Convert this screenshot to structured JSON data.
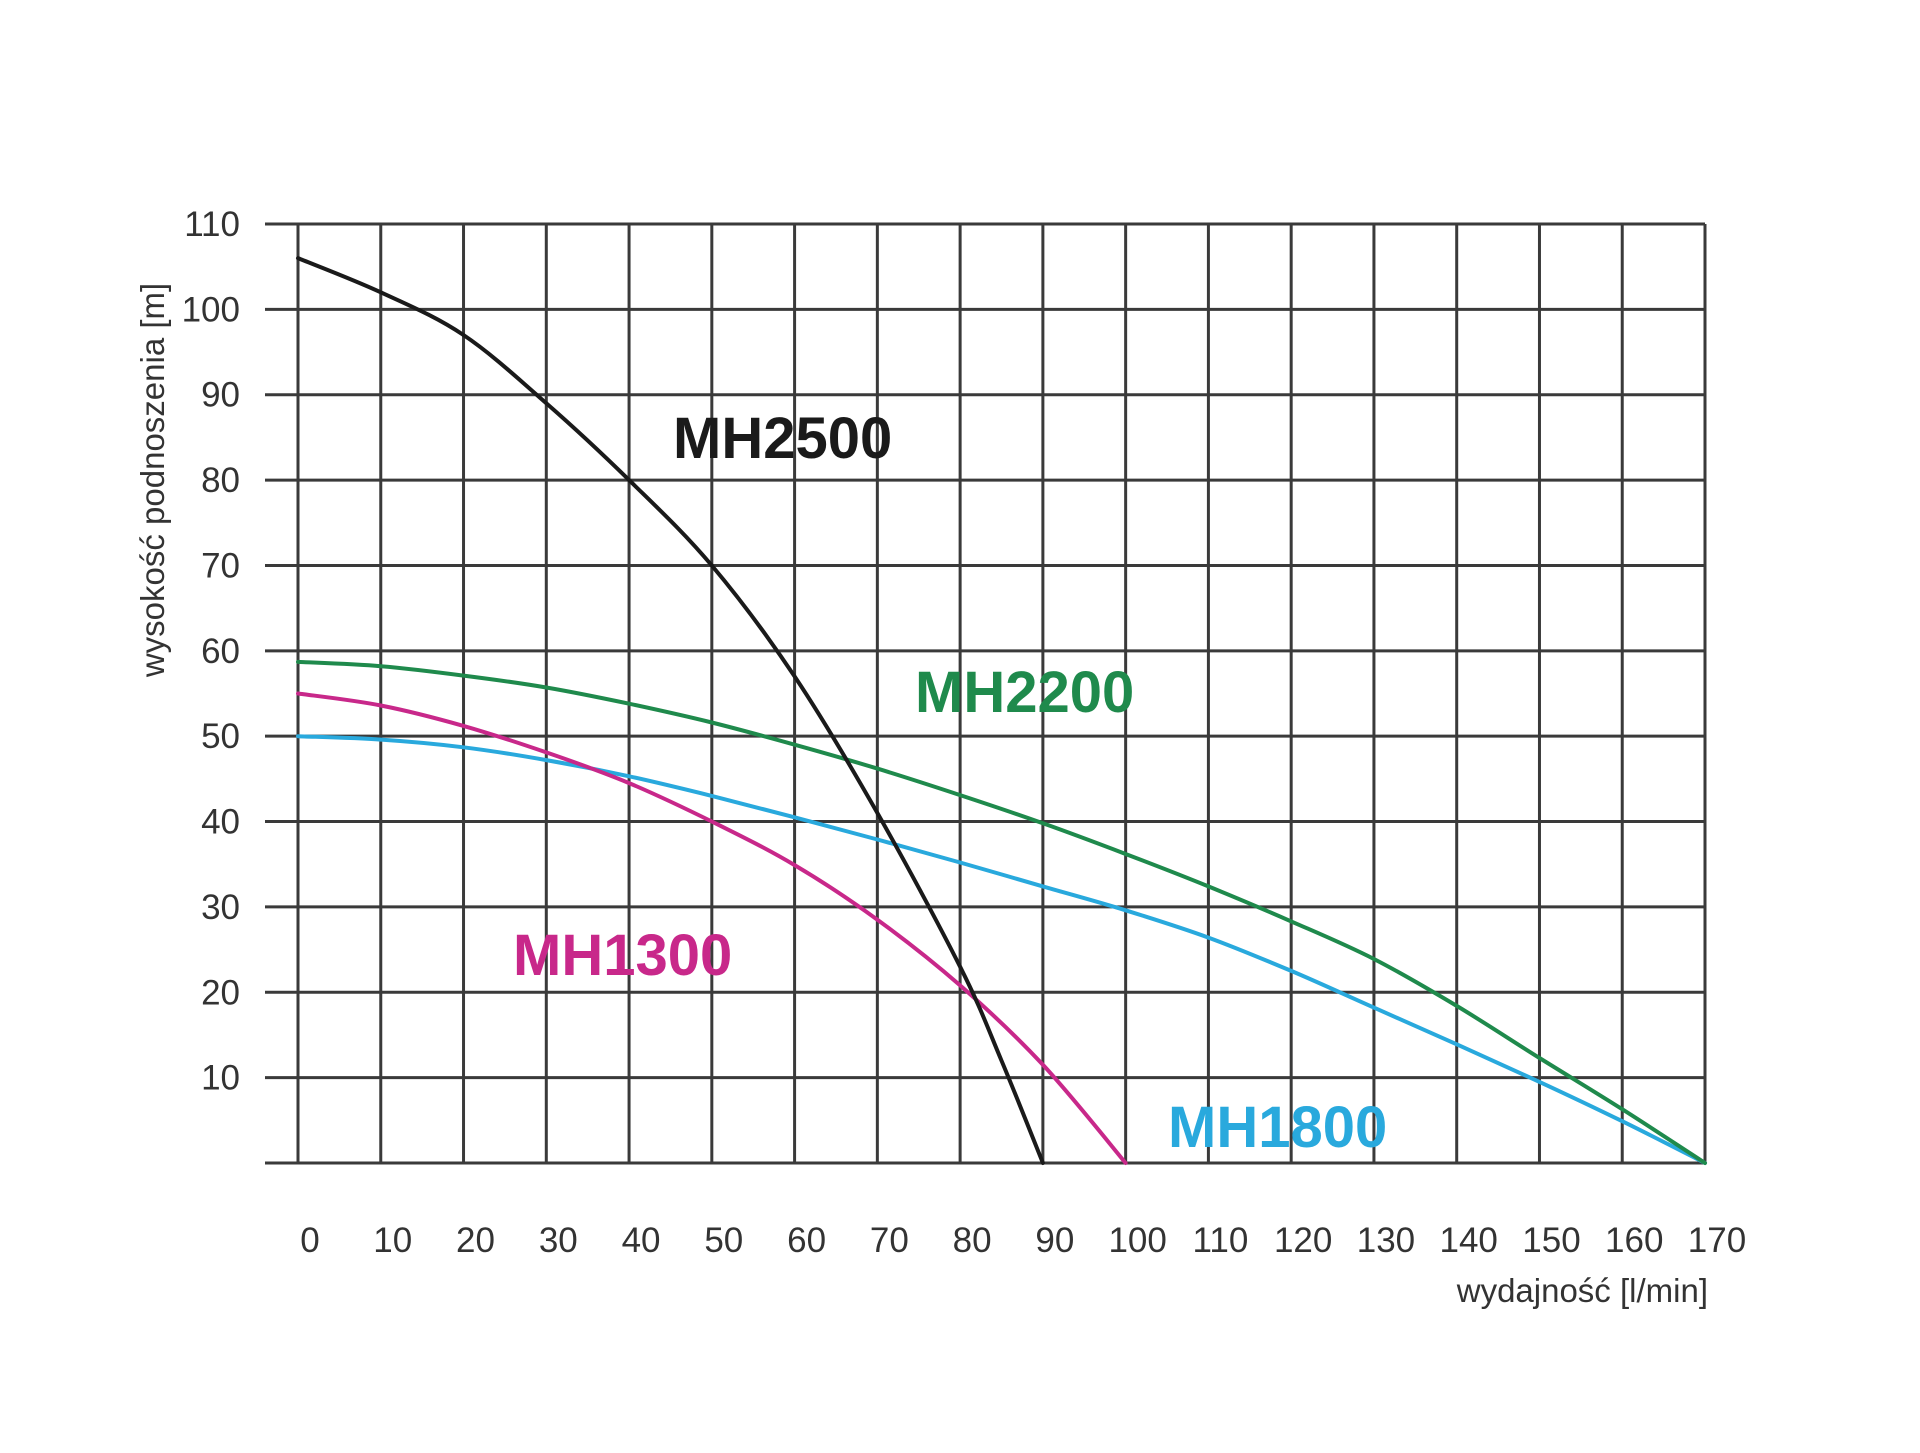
{
  "chart_data": {
    "type": "line",
    "title": "",
    "xlabel": "wydajność [l/min]",
    "ylabel": "wysokość podnoszenia [m]",
    "xlim": [
      0,
      170
    ],
    "ylim": [
      0,
      110
    ],
    "x_ticks": [
      0,
      10,
      20,
      30,
      40,
      50,
      60,
      70,
      80,
      90,
      100,
      110,
      120,
      130,
      140,
      150,
      160,
      170
    ],
    "y_ticks": [
      10,
      20,
      30,
      40,
      50,
      60,
      70,
      80,
      90,
      100,
      110
    ],
    "x_tick_labels": [
      "0",
      "10",
      "20",
      "30",
      "40",
      "50",
      "60",
      "70",
      "80",
      "90",
      "100",
      "110",
      "120",
      "130",
      "140",
      "150",
      "160",
      "170"
    ],
    "y_tick_labels": [
      "10",
      "20",
      "30",
      "40",
      "50",
      "60",
      "70",
      "80",
      "90",
      "100",
      "110"
    ],
    "grid": true,
    "legend": "none",
    "series": [
      {
        "name": "MH2500",
        "color": "#1a1a1a",
        "x": [
          0,
          10,
          20,
          30,
          40,
          50,
          60,
          70,
          80,
          85,
          90
        ],
        "y": [
          106,
          102,
          97,
          89,
          80,
          70,
          57,
          41,
          23,
          12,
          0
        ]
      },
      {
        "name": "MH2200",
        "color": "#1f8a4c",
        "x": [
          0,
          10,
          20,
          30,
          40,
          50,
          60,
          70,
          80,
          90,
          100,
          110,
          120,
          130,
          140,
          150,
          160,
          170
        ],
        "y": [
          58.7,
          58.2,
          57.1,
          55.7,
          53.8,
          51.6,
          49.0,
          46.2,
          43.1,
          39.8,
          36.2,
          32.4,
          28.3,
          23.9,
          18.4,
          12.3,
          6.3,
          0
        ]
      },
      {
        "name": "MH1300",
        "color": "#c8288a",
        "x": [
          0,
          10,
          20,
          30,
          40,
          50,
          60,
          70,
          80,
          90,
          100
        ],
        "y": [
          55,
          53.6,
          51.2,
          48.1,
          44.5,
          40.0,
          34.9,
          28.5,
          20.8,
          11.5,
          0
        ]
      },
      {
        "name": "MH1800",
        "color": "#29a9dd",
        "x": [
          0,
          10,
          20,
          30,
          40,
          50,
          60,
          70,
          80,
          90,
          100,
          110,
          120,
          130,
          140,
          150,
          160,
          170
        ],
        "y": [
          50,
          49.6,
          48.7,
          47.2,
          45.3,
          43.0,
          40.5,
          37.9,
          35.2,
          32.4,
          29.6,
          26.4,
          22.5,
          18.2,
          13.9,
          9.5,
          4.9,
          0
        ]
      }
    ],
    "annotations": [
      {
        "text": "MH2500",
        "series": "MH2500"
      },
      {
        "text": "MH2200",
        "series": "MH2200"
      },
      {
        "text": "MH1300",
        "series": "MH1300"
      },
      {
        "text": "MH1800",
        "series": "MH1800"
      }
    ]
  }
}
